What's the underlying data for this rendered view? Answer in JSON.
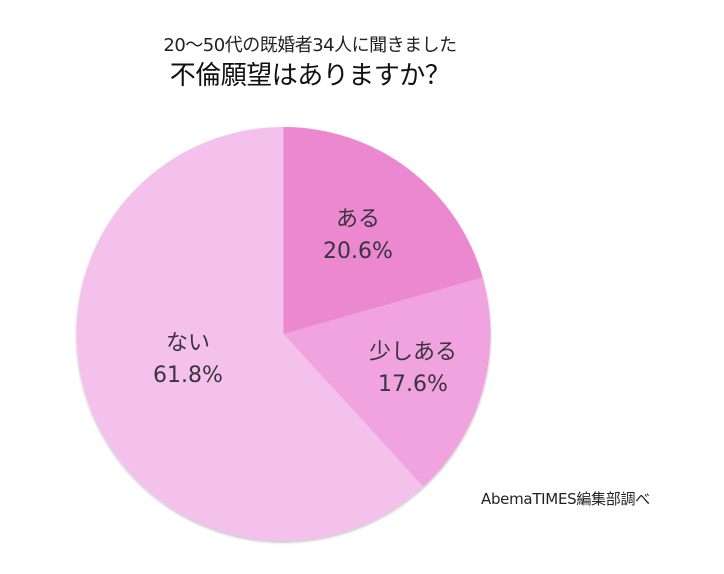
{
  "header": {
    "subtitle": "20〜50代の既婚者34人に聞きました",
    "title": "不倫願望はありますか？"
  },
  "source": "AbemaTIMES編集部調べ",
  "colors": {
    "aru": "#ec88cf",
    "sukoshi_aru": "#f0a3de",
    "nai": "#f4c1ed",
    "label_text": "#3a3340"
  },
  "slices": [
    {
      "label": "ある",
      "percent": "20.6%"
    },
    {
      "label": "少しある",
      "percent": "17.6%"
    },
    {
      "label": "ない",
      "percent": "61.8%"
    }
  ],
  "chart_data": {
    "type": "pie",
    "title": "不倫願望はありますか？",
    "subtitle": "20〜50代の既婚者34人に聞きました",
    "categories": [
      "ある",
      "少しある",
      "ない"
    ],
    "values": [
      20.6,
      17.6,
      61.8
    ],
    "unit": "%",
    "colors": [
      "#ec88cf",
      "#f0a3de",
      "#f4c1ed"
    ],
    "start_angle": "12 o'clock, clockwise",
    "legend": "none (labels inside slices)",
    "annotation": "AbemaTIMES編集部調べ"
  }
}
